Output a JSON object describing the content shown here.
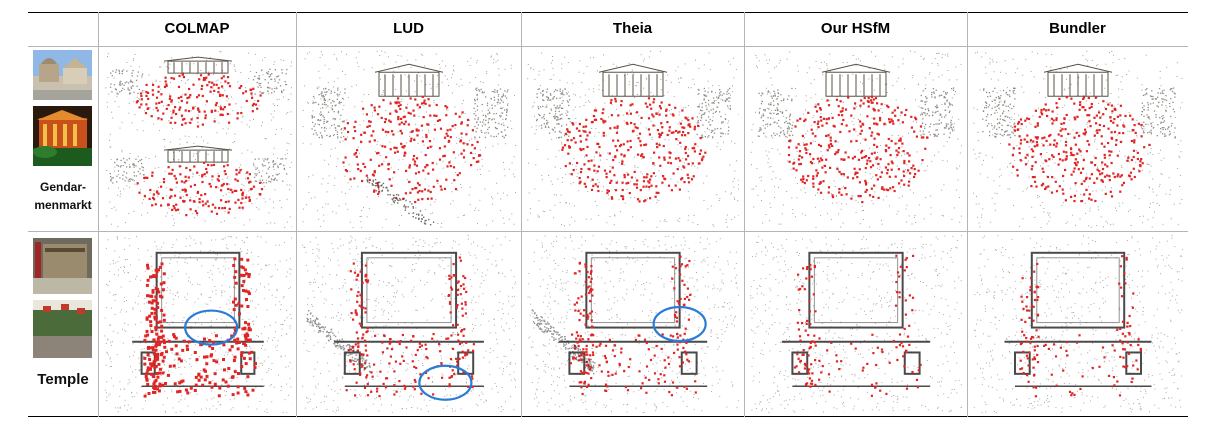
{
  "columns": [
    "COLMAP",
    "LUD",
    "Theia",
    "Our HSfM",
    "Bundler"
  ],
  "rows": [
    {
      "label_lines": [
        "Gendar-",
        "menmarkt"
      ]
    },
    {
      "label_lines": [
        "Temple"
      ]
    }
  ],
  "colors": {
    "camera": "#e02525",
    "points": "#555555",
    "highlight": "#2b7bd6",
    "rule": "#000000",
    "grid": "#b5b5b5"
  }
}
